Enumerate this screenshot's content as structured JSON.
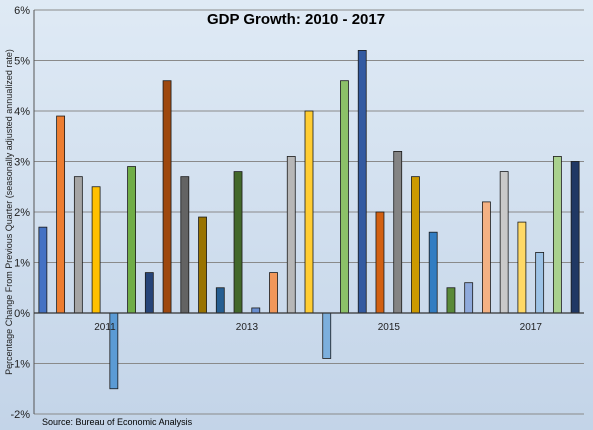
{
  "chart_data": {
    "type": "bar",
    "title": "GDP Growth:  2010 - 2017",
    "ylabel": "Percentage Change From Previous Quarter (seasonally adjusted annualized rate)",
    "xlabel": "",
    "source": "Source: Bureau of Economic Analysis",
    "ylim": [
      -2,
      6
    ],
    "yticks": [
      "-2%",
      "-1%",
      "0%",
      "1%",
      "2%",
      "3%",
      "4%",
      "5%",
      "6%"
    ],
    "year_labels": [
      {
        "label": "2011",
        "after_bar_index": 3
      },
      {
        "label": "2013",
        "after_bar_index": 11
      },
      {
        "label": "2015",
        "after_bar_index": 19
      },
      {
        "label": "2017",
        "after_bar_index": 27
      }
    ],
    "grid": true,
    "values": [
      1.7,
      3.9,
      2.7,
      2.5,
      -1.5,
      2.9,
      0.8,
      4.6,
      2.7,
      1.9,
      0.5,
      2.8,
      0.1,
      0.8,
      3.1,
      4.0,
      -0.9,
      4.6,
      5.2,
      2.0,
      3.2,
      2.7,
      1.6,
      0.5,
      0.6,
      2.2,
      2.8,
      1.8,
      1.2,
      3.1,
      3.0
    ],
    "colors": [
      "#4472C4",
      "#ED7D31",
      "#A5A5A5",
      "#FFC000",
      "#5B9BD5",
      "#70AD47",
      "#264478",
      "#9E480E",
      "#636363",
      "#997300",
      "#255E91",
      "#43682B",
      "#698ED0",
      "#F1975A",
      "#B7B7B7",
      "#FFCD33",
      "#7CAFDD",
      "#8CC168",
      "#335AA1",
      "#D26012",
      "#848484",
      "#CC9A00",
      "#327DC2",
      "#5A8A39",
      "#8FAADC",
      "#F4B183",
      "#C9C9C9",
      "#FFD966",
      "#9DC3E6",
      "#A9D18E",
      "#203864"
    ]
  }
}
